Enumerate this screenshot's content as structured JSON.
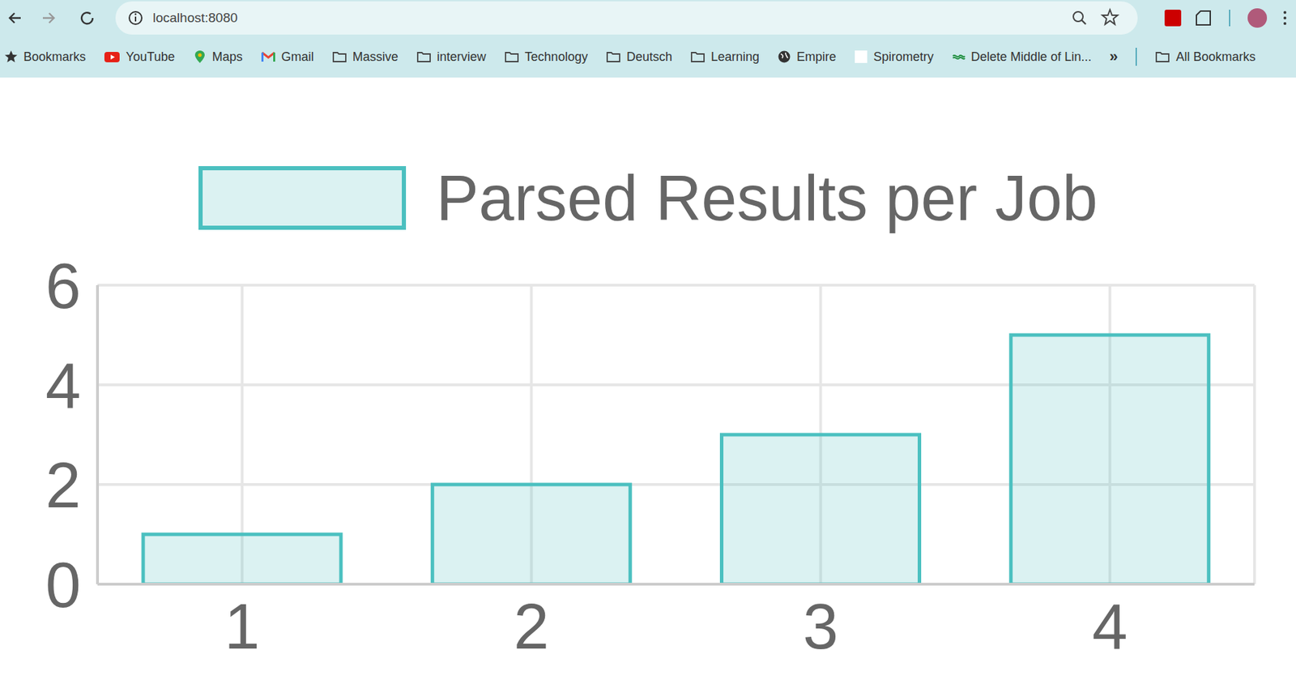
{
  "browser": {
    "url": "localhost:8080",
    "bookmarks": [
      "Bookmarks",
      "YouTube",
      "Maps",
      "Gmail",
      "Massive",
      "interview",
      "Technology",
      "Deutsch",
      "Learning",
      "Empire",
      "Spirometry",
      "Delete Middle of Lin..."
    ],
    "more": "»",
    "all_bookmarks": "All Bookmarks"
  },
  "chart_data": {
    "type": "bar",
    "categories": [
      "1",
      "2",
      "3",
      "4"
    ],
    "series": [
      {
        "name": "Parsed Results per Job",
        "color": "#4bc0c0",
        "values": [
          1,
          2,
          3,
          5
        ]
      }
    ],
    "ylim": [
      0,
      6
    ],
    "yticks": [
      0,
      2,
      4,
      6
    ],
    "grid": true,
    "legend": "top"
  }
}
